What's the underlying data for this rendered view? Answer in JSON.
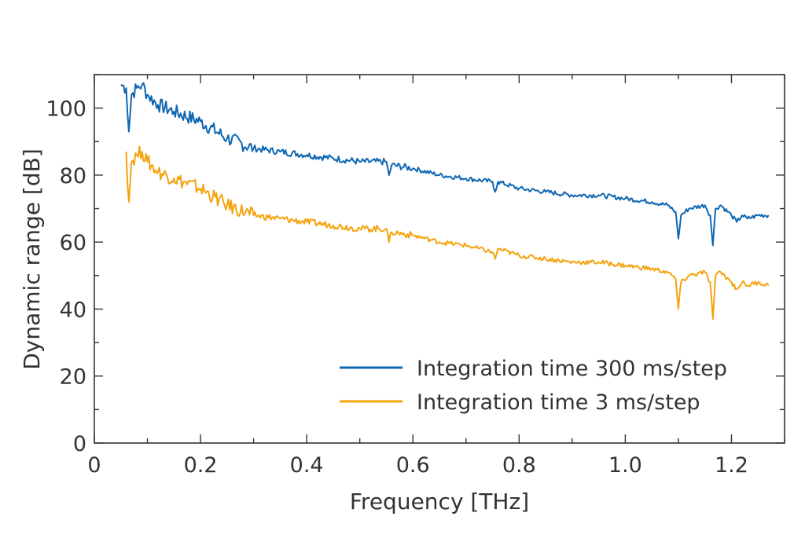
{
  "chart_data": {
    "type": "line",
    "title": "",
    "xlabel": "Frequency [THz]",
    "ylabel": "Dynamic range [dB]",
    "xlim": [
      0,
      1.3
    ],
    "ylim": [
      0,
      110
    ],
    "xticks": [
      0,
      0.2,
      0.4,
      0.6,
      0.8,
      1.0,
      1.2
    ],
    "xtick_labels": [
      "0",
      "0.2",
      "0.4",
      "0.6",
      "0.8",
      "1.0",
      "1.2"
    ],
    "yticks": [
      0,
      20,
      40,
      60,
      80,
      100
    ],
    "ytick_labels": [
      "0",
      "20",
      "40",
      "60",
      "80",
      "100"
    ],
    "grid": false,
    "legend_position": "bottom-right",
    "series": [
      {
        "name": "Integration time 300 ms/step",
        "color": "#0e67b3",
        "x": [
          0.05,
          0.06,
          0.065,
          0.07,
          0.08,
          0.09,
          0.1,
          0.12,
          0.15,
          0.2,
          0.25,
          0.3,
          0.35,
          0.4,
          0.45,
          0.5,
          0.55,
          0.555,
          0.56,
          0.6,
          0.65,
          0.7,
          0.75,
          0.755,
          0.76,
          0.8,
          0.85,
          0.9,
          0.95,
          1.0,
          1.05,
          1.08,
          1.095,
          1.1,
          1.105,
          1.12,
          1.15,
          1.16,
          1.165,
          1.17,
          1.18,
          1.2,
          1.21,
          1.22,
          1.23,
          1.25,
          1.27
        ],
        "y": [
          107,
          106,
          93,
          104,
          106,
          107,
          104,
          101,
          99,
          96,
          91,
          88,
          87,
          86,
          85,
          84,
          84,
          80,
          83,
          82,
          80,
          79,
          78,
          75,
          78,
          76,
          75,
          74,
          74,
          73,
          72,
          71,
          69,
          61,
          68,
          70,
          71,
          68,
          59,
          70,
          71,
          68,
          66,
          68,
          67,
          68,
          68
        ]
      },
      {
        "name": "Integration time 3 ms/step",
        "color": "#f5a30f",
        "x": [
          0.06,
          0.065,
          0.07,
          0.08,
          0.09,
          0.1,
          0.12,
          0.15,
          0.2,
          0.25,
          0.3,
          0.35,
          0.4,
          0.45,
          0.5,
          0.55,
          0.555,
          0.56,
          0.6,
          0.65,
          0.7,
          0.75,
          0.755,
          0.76,
          0.8,
          0.85,
          0.9,
          0.95,
          1.0,
          1.05,
          1.08,
          1.095,
          1.1,
          1.105,
          1.12,
          1.15,
          1.16,
          1.165,
          1.17,
          1.18,
          1.2,
          1.21,
          1.22,
          1.23,
          1.25,
          1.27
        ],
        "y": [
          87,
          72,
          84,
          86,
          87,
          84,
          81,
          79,
          76,
          71,
          68,
          67,
          66,
          65,
          64,
          64,
          60,
          63,
          62,
          60,
          59,
          57,
          55,
          58,
          56,
          55,
          54,
          54,
          53,
          52,
          51,
          49,
          40,
          48,
          50,
          51,
          48,
          37,
          50,
          51,
          48,
          46,
          48,
          47,
          48,
          47
        ]
      }
    ]
  }
}
